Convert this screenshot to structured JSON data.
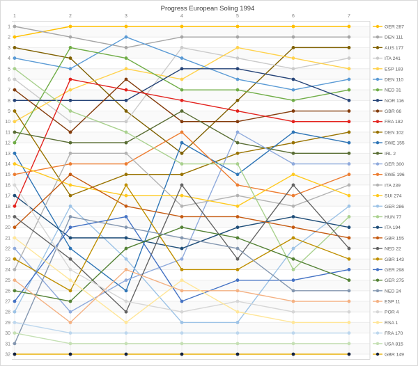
{
  "title": "Progress European Soling 1994",
  "chart_data": {
    "type": "line",
    "title": "Progress European Soling 1994",
    "xlabel": "",
    "ylabel": "",
    "x": [
      1,
      2,
      3,
      4,
      5,
      6,
      7
    ],
    "x_tick_labels": [
      "1",
      "2",
      "3",
      "4",
      "5",
      "6",
      "7"
    ],
    "x_ticks_position": "top",
    "y_tick_labels": [
      "1",
      "2",
      "3",
      "4",
      "5",
      "6",
      "7",
      "8",
      "9",
      "10",
      "11",
      "12",
      "13",
      "14",
      "15",
      "16",
      "17",
      "18",
      "19",
      "20",
      "21",
      "22",
      "23",
      "24",
      "25",
      "26",
      "27",
      "28",
      "29",
      "30",
      "31",
      "32"
    ],
    "y_axis_inverted": true,
    "ylim": [
      1,
      32
    ],
    "grid": true,
    "legend_position": "right",
    "series": [
      {
        "name": "GER 287",
        "color": "#FFC000",
        "ranks": [
          2,
          1,
          1,
          1,
          1,
          1,
          1
        ]
      },
      {
        "name": "DEN 111",
        "color": "#A6A6A6",
        "ranks": [
          1,
          2,
          3,
          2,
          2,
          2,
          2
        ]
      },
      {
        "name": "AUS 177",
        "color": "#7F6000",
        "ranks": [
          3,
          4,
          9,
          13,
          8,
          3,
          3
        ]
      },
      {
        "name": "ITA 241",
        "color": "#CBCBCB",
        "ranks": [
          6,
          10,
          10,
          3,
          4,
          5,
          4
        ]
      },
      {
        "name": "ESP 183",
        "color": "#FFD24D",
        "ranks": [
          10,
          7,
          5,
          6,
          3,
          4,
          5
        ]
      },
      {
        "name": "DEN 110",
        "color": "#5B9BD5",
        "ranks": [
          4,
          5,
          2,
          4,
          6,
          7,
          6
        ]
      },
      {
        "name": "NED 31",
        "color": "#70AD47",
        "ranks": [
          12,
          3,
          4,
          7,
          7,
          8,
          7
        ]
      },
      {
        "name": "NOR 116",
        "color": "#264478",
        "ranks": [
          8,
          8,
          8,
          5,
          5,
          6,
          8
        ]
      },
      {
        "name": "GBR 66",
        "color": "#843C0C",
        "ranks": [
          7,
          11,
          6,
          10,
          10,
          9,
          9
        ]
      },
      {
        "name": "FRA 182",
        "color": "#E3231E",
        "ranks": [
          18,
          6,
          7,
          8,
          9,
          10,
          10
        ]
      },
      {
        "name": "DEN 102",
        "color": "#997300",
        "ranks": [
          9,
          17,
          15,
          15,
          13,
          12,
          11
        ]
      },
      {
        "name": "SWE 155",
        "color": "#2E75B6",
        "ranks": [
          13,
          22,
          26,
          12,
          15,
          11,
          12
        ]
      },
      {
        "name": "IRL 2",
        "color": "#5A6E35",
        "ranks": [
          11,
          12,
          12,
          9,
          12,
          13,
          13
        ]
      },
      {
        "name": "GER 300",
        "color": "#8FAADC",
        "ranks": [
          22,
          28,
          25,
          23,
          11,
          14,
          14
        ]
      },
      {
        "name": "SWE 196",
        "color": "#ED7D31",
        "ranks": [
          15,
          14,
          14,
          11,
          16,
          17,
          15
        ]
      },
      {
        "name": "ITA 239",
        "color": "#B3B3B3",
        "ranks": [
          24,
          13,
          13,
          18,
          17,
          18,
          16
        ]
      },
      {
        "name": "SUI 274",
        "color": "#FFC91E",
        "ranks": [
          14,
          16,
          17,
          17,
          18,
          15,
          17
        ]
      },
      {
        "name": "GER 286",
        "color": "#9DC3E6",
        "ranks": [
          28,
          18,
          23,
          29,
          29,
          22,
          18
        ]
      },
      {
        "name": "HUN 77",
        "color": "#A9D18E",
        "ranks": [
          5,
          9,
          11,
          14,
          14,
          24,
          19
        ]
      },
      {
        "name": "ITA 194",
        "color": "#1F4E79",
        "ranks": [
          17,
          21,
          21,
          22,
          20,
          19,
          20
        ]
      },
      {
        "name": "GBR 155",
        "color": "#C55A11",
        "ranks": [
          20,
          15,
          18,
          19,
          19,
          20,
          21
        ]
      },
      {
        "name": "NED 22",
        "color": "#636363",
        "ranks": [
          19,
          23,
          28,
          16,
          23,
          16,
          22
        ]
      },
      {
        "name": "GBR 143",
        "color": "#BF8F00",
        "ranks": [
          23,
          26,
          16,
          24,
          24,
          21,
          23
        ]
      },
      {
        "name": "GER 298",
        "color": "#4472C4",
        "ranks": [
          27,
          20,
          19,
          27,
          25,
          25,
          24
        ]
      },
      {
        "name": "GER 275",
        "color": "#548235",
        "ranks": [
          26,
          27,
          22,
          20,
          21,
          23,
          25
        ]
      },
      {
        "name": "NED 24",
        "color": "#8497B0",
        "ranks": [
          31,
          19,
          20,
          21,
          22,
          26,
          26
        ]
      },
      {
        "name": "ESP 11",
        "color": "#F4B183",
        "ranks": [
          25,
          29,
          24,
          26,
          26,
          27,
          27
        ]
      },
      {
        "name": "POR 4",
        "color": "#D6D6D6",
        "ranks": [
          16,
          24,
          27,
          28,
          27,
          28,
          28
        ]
      },
      {
        "name": "RSA 1",
        "color": "#FFE699",
        "ranks": [
          21,
          25,
          29,
          25,
          28,
          29,
          29
        ]
      },
      {
        "name": "FRA 170",
        "color": "#BDD7EE",
        "ranks": [
          29,
          30,
          30,
          30,
          30,
          30,
          30
        ]
      },
      {
        "name": "USA 815",
        "color": "#C5E0B4",
        "ranks": [
          30,
          31,
          31,
          31,
          31,
          31,
          31
        ]
      },
      {
        "name": "GBR 149",
        "color": "#E8B007",
        "marker_color": "#14213D",
        "ranks": [
          32,
          32,
          32,
          32,
          32,
          32,
          32
        ]
      }
    ]
  }
}
